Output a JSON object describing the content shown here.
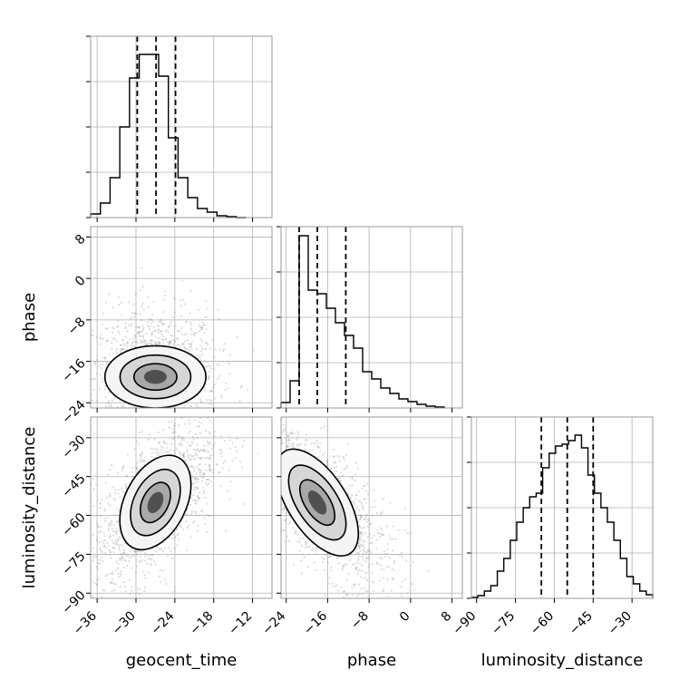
{
  "chart_data": {
    "type": "corner",
    "parameters": [
      "geocent_time",
      "phase",
      "luminosity_distance"
    ],
    "ranges": {
      "geocent_time": [
        -37,
        -9
      ],
      "phase": [
        -25,
        10
      ],
      "luminosity_distance": [
        -92,
        -22
      ]
    },
    "ticks": {
      "geocent_time": [
        -36,
        -30,
        -24,
        -18,
        -12
      ],
      "phase": [
        -24,
        -16,
        -8,
        0,
        8
      ],
      "luminosity_distance": [
        -90,
        -75,
        -60,
        -45,
        -30
      ]
    },
    "quantiles": {
      "geocent_time": [
        -29.8,
        -26.9,
        -23.9
      ],
      "phase": [
        -21.5,
        -18.0,
        -12.5
      ],
      "luminosity_distance": [
        -65.0,
        -55.0,
        -45.0
      ]
    },
    "histograms": {
      "geocent_time": {
        "edges": [
          -37,
          -35.5,
          -34,
          -32.5,
          -31,
          -29.5,
          -28,
          -26.5,
          -25,
          -23.5,
          -22,
          -20.5,
          -19,
          -17.5,
          -16,
          -14.5,
          -13
        ],
        "counts": [
          0.02,
          0.08,
          0.22,
          0.5,
          0.77,
          0.9,
          0.9,
          0.78,
          0.44,
          0.22,
          0.11,
          0.05,
          0.03,
          0.01,
          0.005,
          0
        ]
      },
      "phase": {
        "edges": [
          -25,
          -23.25,
          -21.5,
          -19.75,
          -18,
          -16.25,
          -14.5,
          -12.75,
          -11,
          -9.25,
          -7.5,
          -5.75,
          -4,
          -2.25,
          -0.5,
          1.25,
          3,
          4.75,
          6.5
        ],
        "counts": [
          0.03,
          0.15,
          0.95,
          0.65,
          0.63,
          0.55,
          0.47,
          0.4,
          0.33,
          0.2,
          0.16,
          0.11,
          0.08,
          0.05,
          0.035,
          0.02,
          0.01,
          0.005
        ]
      },
      "luminosity_distance": {
        "edges": [
          -92,
          -89.5,
          -87,
          -84.5,
          -82,
          -79.5,
          -77,
          -74.5,
          -72,
          -69.5,
          -67,
          -64.5,
          -62,
          -59.5,
          -57,
          -54.5,
          -52,
          -49.5,
          -47,
          -44.5,
          -42,
          -39.5,
          -37,
          -34.5,
          -32,
          -29.5,
          -27,
          -24.5,
          -22
        ],
        "counts": [
          0.005,
          0.015,
          0.04,
          0.07,
          0.15,
          0.22,
          0.32,
          0.42,
          0.5,
          0.56,
          0.58,
          0.72,
          0.8,
          0.84,
          0.85,
          0.87,
          0.9,
          0.83,
          0.68,
          0.58,
          0.5,
          0.42,
          0.32,
          0.22,
          0.12,
          0.08,
          0.04,
          0.02
        ]
      }
    },
    "density_centers": {
      "phase_vs_geocent_time": {
        "x": -27.0,
        "y": -19.0,
        "sx": 3.0,
        "sy": 4.0,
        "rho": 0.0
      },
      "luminosity_distance_vs_geocent_time": {
        "x": -27.0,
        "y": -55.0,
        "sx": 3.0,
        "sy": 10.0,
        "rho": 0.6
      },
      "luminosity_distance_vs_phase": {
        "x": -18.0,
        "y": -55.0,
        "sx": 4.5,
        "sy": 10.0,
        "rho": -0.7
      }
    },
    "grid": true,
    "contour_levels": 3
  }
}
